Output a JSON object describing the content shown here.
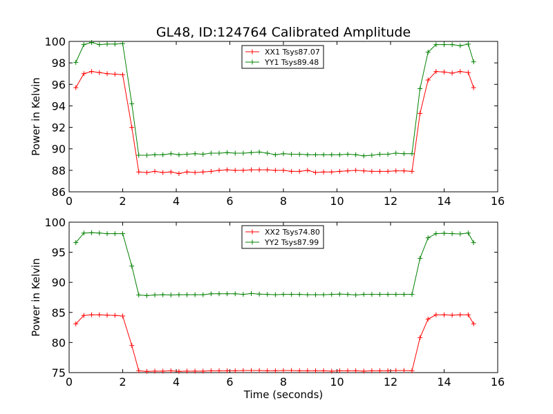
{
  "figure": {
    "title": "GL48, ID:124764 Calibrated Amplitude"
  },
  "chart_data": [
    {
      "type": "line",
      "title": "GL48, ID:124764 Calibrated Amplitude",
      "xlabel": "",
      "ylabel": "Power in Kelvin",
      "xlim": [
        0,
        16
      ],
      "ylim": [
        86,
        100
      ],
      "xticks": [
        0,
        2,
        4,
        6,
        8,
        10,
        12,
        14,
        16
      ],
      "yticks": [
        86,
        88,
        90,
        92,
        94,
        96,
        98,
        100
      ],
      "grid": false,
      "legend_position": "top-center",
      "x": [
        0.25,
        0.55,
        0.84,
        1.13,
        1.42,
        1.71,
        2.0,
        2.34,
        2.6,
        2.9,
        3.2,
        3.5,
        3.8,
        4.1,
        4.4,
        4.7,
        5.0,
        5.3,
        5.6,
        5.9,
        6.2,
        6.5,
        6.8,
        7.1,
        7.4,
        7.7,
        8.0,
        8.3,
        8.6,
        8.9,
        9.2,
        9.5,
        9.8,
        10.1,
        10.4,
        10.7,
        11.0,
        11.3,
        11.6,
        11.9,
        12.2,
        12.5,
        12.8,
        13.1,
        13.4,
        13.7,
        14.0,
        14.3,
        14.6,
        14.9,
        15.1
      ],
      "series": [
        {
          "name": "XX1 Tsys87.07",
          "color": "#ff0000",
          "values": [
            95.7,
            97.0,
            97.2,
            97.1,
            97.0,
            96.95,
            96.9,
            92.0,
            87.85,
            87.8,
            87.9,
            87.8,
            87.85,
            87.7,
            87.85,
            87.8,
            87.85,
            87.9,
            88.0,
            88.05,
            88.0,
            88.0,
            88.05,
            88.05,
            88.05,
            88.0,
            88.0,
            87.9,
            87.9,
            88.0,
            87.8,
            87.85,
            87.85,
            87.9,
            87.95,
            88.0,
            87.95,
            87.9,
            87.9,
            87.9,
            87.95,
            87.95,
            87.9,
            93.3,
            96.4,
            97.2,
            97.15,
            97.05,
            97.2,
            97.1,
            95.7
          ]
        },
        {
          "name": "YY1 Tsys89.48",
          "color": "#008000",
          "values": [
            98.05,
            99.7,
            99.9,
            99.7,
            99.75,
            99.75,
            99.8,
            94.2,
            89.4,
            89.4,
            89.45,
            89.45,
            89.55,
            89.45,
            89.5,
            89.55,
            89.5,
            89.6,
            89.6,
            89.65,
            89.6,
            89.6,
            89.65,
            89.7,
            89.6,
            89.45,
            89.55,
            89.5,
            89.5,
            89.45,
            89.45,
            89.45,
            89.45,
            89.45,
            89.5,
            89.45,
            89.35,
            89.4,
            89.5,
            89.5,
            89.6,
            89.55,
            89.55,
            95.6,
            99.0,
            99.7,
            99.7,
            99.7,
            99.6,
            99.75,
            98.1
          ]
        }
      ]
    },
    {
      "type": "line",
      "title": "",
      "xlabel": "Time (seconds)",
      "ylabel": "Power in Kelvin",
      "xlim": [
        0,
        16
      ],
      "ylim": [
        75,
        100
      ],
      "xticks": [
        0,
        2,
        4,
        6,
        8,
        10,
        12,
        14,
        16
      ],
      "yticks": [
        75,
        80,
        85,
        90,
        95,
        100
      ],
      "grid": false,
      "legend_position": "top-center",
      "x": [
        0.25,
        0.55,
        0.84,
        1.13,
        1.42,
        1.71,
        2.0,
        2.34,
        2.6,
        2.9,
        3.2,
        3.5,
        3.8,
        4.1,
        4.4,
        4.7,
        5.0,
        5.3,
        5.6,
        5.9,
        6.2,
        6.5,
        6.8,
        7.1,
        7.4,
        7.7,
        8.0,
        8.3,
        8.6,
        8.9,
        9.2,
        9.5,
        9.8,
        10.1,
        10.4,
        10.7,
        11.0,
        11.3,
        11.6,
        11.9,
        12.2,
        12.5,
        12.8,
        13.1,
        13.4,
        13.7,
        14.0,
        14.3,
        14.6,
        14.9,
        15.1
      ],
      "series": [
        {
          "name": "XX2 Tsys74.80",
          "color": "#ff0000",
          "values": [
            83.1,
            84.5,
            84.6,
            84.6,
            84.55,
            84.5,
            84.4,
            79.5,
            75.3,
            75.2,
            75.25,
            75.25,
            75.3,
            75.2,
            75.25,
            75.25,
            75.25,
            75.3,
            75.3,
            75.3,
            75.3,
            75.35,
            75.35,
            75.35,
            75.3,
            75.3,
            75.35,
            75.35,
            75.3,
            75.3,
            75.3,
            75.3,
            75.25,
            75.3,
            75.3,
            75.3,
            75.25,
            75.3,
            75.3,
            75.3,
            75.35,
            75.35,
            75.3,
            80.8,
            83.9,
            84.6,
            84.6,
            84.55,
            84.6,
            84.6,
            83.1
          ]
        },
        {
          "name": "YY2 Tsys87.99",
          "color": "#008000",
          "values": [
            96.6,
            98.2,
            98.25,
            98.2,
            98.1,
            98.1,
            98.1,
            92.7,
            87.9,
            87.8,
            87.9,
            87.95,
            87.9,
            87.95,
            87.95,
            87.95,
            87.95,
            88.1,
            88.1,
            88.1,
            88.1,
            88.0,
            88.15,
            88.05,
            88.0,
            87.95,
            88.0,
            88.0,
            88.0,
            87.95,
            87.95,
            87.95,
            88.0,
            88.05,
            88.0,
            87.9,
            88.0,
            88.0,
            88.0,
            88.0,
            88.0,
            88.0,
            88.0,
            94.0,
            97.4,
            98.1,
            98.15,
            98.1,
            98.05,
            98.2,
            96.6
          ]
        }
      ]
    }
  ]
}
